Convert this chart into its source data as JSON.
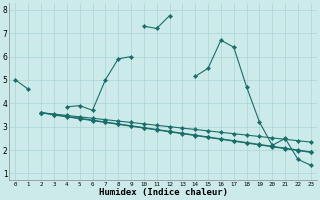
{
  "xlabel": "Humidex (Indice chaleur)",
  "bg_color": "#cceaea",
  "line_color": "#1a6e6a",
  "grid_color": "#aad4d4",
  "xlim": [
    -0.5,
    23.5
  ],
  "ylim": [
    0.7,
    8.3
  ],
  "xtick_values": [
    0,
    1,
    2,
    3,
    4,
    5,
    6,
    7,
    8,
    9,
    10,
    11,
    12,
    13,
    14,
    15,
    16,
    17,
    18,
    19,
    20,
    21,
    22,
    23
  ],
  "xtick_labels": [
    "0",
    "1",
    "2",
    "3",
    "4",
    "5",
    "6",
    "7",
    "8",
    "9",
    "10",
    "11",
    "12",
    "13",
    "14",
    "15",
    "16",
    "17",
    "18",
    "19",
    "20",
    "21",
    "22",
    "23"
  ],
  "ytick_values": [
    1,
    2,
    3,
    4,
    5,
    6,
    7,
    8
  ],
  "series": [
    {
      "comment": "main curve: 0->5, 1->4.6, gap, 10->7.3, 11->7.2, 12->7.75, gap, 14->5.15, 15->5.5, 16->6.7, 17->6.4, 18->4.7, 19->3.2, 20->2.2, 21->2.5, 22->1.6, 23->1.35",
      "segments": [
        {
          "x": [
            0,
            1
          ],
          "y": [
            5.0,
            4.6
          ]
        },
        {
          "x": [
            10,
            11,
            12
          ],
          "y": [
            7.3,
            7.2,
            7.75
          ]
        },
        {
          "x": [
            14,
            15,
            16,
            17,
            18,
            19,
            20,
            21,
            22,
            23
          ],
          "y": [
            5.15,
            5.5,
            6.7,
            6.4,
            4.7,
            3.2,
            2.2,
            2.5,
            1.6,
            1.35
          ]
        }
      ]
    },
    {
      "comment": "second curve: 2->3.6, gap, 4->3.85, 5->3.9, 6->3.7, 7->5.0, 8->5.9, 9->6.0",
      "segments": [
        {
          "x": [
            2
          ],
          "y": [
            3.6
          ]
        },
        {
          "x": [
            4,
            5,
            6,
            7,
            8,
            9
          ],
          "y": [
            3.85,
            3.9,
            3.7,
            5.0,
            5.9,
            6.0
          ]
        }
      ]
    },
    {
      "segments": [
        {
          "x": [
            2,
            3,
            4,
            5,
            6,
            7,
            8,
            9,
            10,
            11,
            12,
            13,
            14,
            15,
            16,
            17,
            18,
            19,
            20,
            21,
            22,
            23
          ],
          "y": [
            3.6,
            3.5,
            3.42,
            3.34,
            3.26,
            3.18,
            3.1,
            3.02,
            2.94,
            2.86,
            2.78,
            2.7,
            2.62,
            2.54,
            2.46,
            2.38,
            2.3,
            2.22,
            2.14,
            2.06,
            1.98,
            1.9
          ]
        }
      ]
    },
    {
      "segments": [
        {
          "x": [
            2,
            3,
            4,
            5,
            6,
            7,
            8,
            9,
            10,
            11,
            12,
            13,
            14,
            15,
            16,
            17,
            18,
            19,
            20,
            21,
            22,
            23
          ],
          "y": [
            3.6,
            3.52,
            3.44,
            3.36,
            3.28,
            3.2,
            3.12,
            3.04,
            2.96,
            2.88,
            2.8,
            2.72,
            2.64,
            2.56,
            2.48,
            2.4,
            2.32,
            2.24,
            2.16,
            2.08,
            2.0,
            1.92
          ]
        }
      ]
    },
    {
      "segments": [
        {
          "x": [
            2,
            3,
            4,
            5,
            6,
            7,
            8,
            9,
            10,
            11,
            12,
            13,
            14,
            15,
            16,
            17,
            18,
            19,
            20,
            21,
            22,
            23
          ],
          "y": [
            3.6,
            3.54,
            3.48,
            3.42,
            3.36,
            3.3,
            3.24,
            3.18,
            3.12,
            3.06,
            3.0,
            2.94,
            2.88,
            2.82,
            2.76,
            2.7,
            2.64,
            2.58,
            2.52,
            2.46,
            2.4,
            2.34
          ]
        }
      ]
    }
  ]
}
